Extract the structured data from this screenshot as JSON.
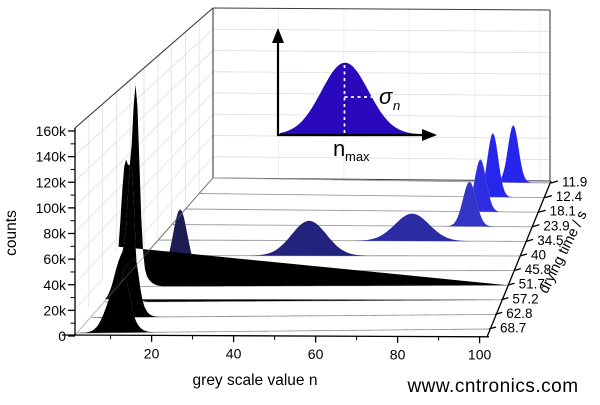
{
  "chart_data": {
    "type": "area",
    "subtype": "3d-waterfall-histograms",
    "title": "",
    "xlabel": "grey scale value n",
    "ylabel": "counts",
    "zlabel": "drying time / s",
    "x_range": [
      0,
      103
    ],
    "x_major_ticks": [
      20,
      40,
      60,
      80,
      100
    ],
    "x_minor_ticks": [
      10,
      30,
      50,
      70,
      90
    ],
    "y_range_counts": [
      0,
      160000
    ],
    "y_tick_labels": [
      "0",
      "20k",
      "40k",
      "60k",
      "80k",
      "100k",
      "120k",
      "140k",
      "160k"
    ],
    "grid": true,
    "legend": false,
    "series": [
      {
        "drying_time_s": 68.7,
        "label": "68.7",
        "color": "#000000",
        "peaks": [
          {
            "center": 10,
            "sigma": 2.6,
            "height_k": 38
          },
          {
            "center": 12.2,
            "sigma": 0.9,
            "height_k": 13
          }
        ]
      },
      {
        "drying_time_s": 62.8,
        "label": "62.8",
        "color": "#000000",
        "peaks": [
          {
            "center": 9.5,
            "sigma": 2.2,
            "height_k": 42
          },
          {
            "center": 11.4,
            "sigma": 0.75,
            "height_k": 16
          }
        ]
      },
      {
        "drying_time_s": 57.2,
        "label": "57.2",
        "color": "#000000",
        "peaks": [
          {
            "center": 4.5,
            "sigma": 1.9,
            "height_k": 38
          },
          {
            "center": 6.8,
            "sigma": 0.85,
            "height_k": 95
          }
        ]
      },
      {
        "drying_time_s": 51.7,
        "label": "51.7",
        "color": "#000000",
        "peaks": [
          {
            "center": 1.8,
            "sigma": 1.1,
            "height_k": 80
          },
          {
            "center": 4.6,
            "sigma": 0.9,
            "height_k": 138
          },
          {
            "center": 3.4,
            "sigma": 2.6,
            "height_k": 28
          }
        ]
      },
      {
        "drying_time_s": 45.8,
        "label": "45.8",
        "color": "#1d1d52",
        "peaks": [
          {
            "center": 13,
            "sigma": 1.9,
            "height_k": 52
          }
        ]
      },
      {
        "drying_time_s": 40,
        "label": "40",
        "color": "#23237e",
        "peaks": [
          {
            "center": 45,
            "sigma": 4.8,
            "height_k": 30
          }
        ]
      },
      {
        "drying_time_s": 34.5,
        "label": "34.5",
        "color": "#2b2ba4",
        "peaks": [
          {
            "center": 71,
            "sigma": 4.8,
            "height_k": 24
          }
        ]
      },
      {
        "drying_time_s": 23.9,
        "label": "23.9",
        "color": "#3434c6",
        "peaks": [
          {
            "center": 85,
            "sigma": 1.9,
            "height_k": 40
          }
        ]
      },
      {
        "drying_time_s": 18.1,
        "label": "18.1",
        "color": "#2e2ee0",
        "peaks": [
          {
            "center": 86,
            "sigma": 1.7,
            "height_k": 48
          }
        ]
      },
      {
        "drying_time_s": 12.4,
        "label": "12.4",
        "color": "#2727ec",
        "peaks": [
          {
            "center": 87.5,
            "sigma": 1.6,
            "height_k": 60
          }
        ]
      },
      {
        "drying_time_s": 11.9,
        "label": "11.9",
        "color": "#2525ee",
        "peaks": [
          {
            "center": 91.5,
            "sigma": 1.6,
            "height_k": 55
          }
        ]
      }
    ],
    "inset": {
      "description": "gaussian-definition-sketch",
      "fill": "#2a08bc",
      "peak_label": "n",
      "peak_label_sub": "max",
      "sigma_label": "σ",
      "sigma_label_sub": "n"
    }
  },
  "watermark": {
    "text": "www.cntronics.com",
    "color": "#b8dfae"
  }
}
